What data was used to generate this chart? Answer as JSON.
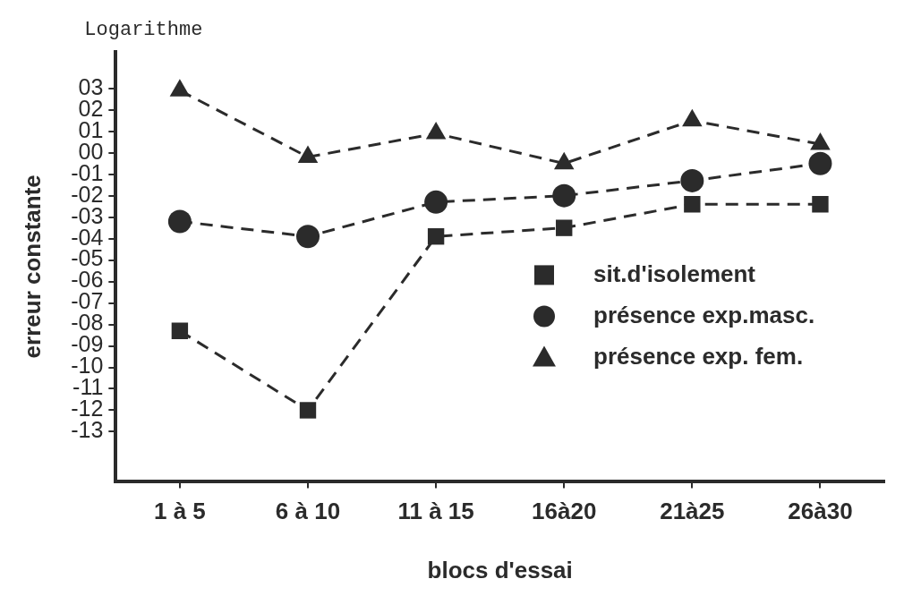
{
  "chart_data": {
    "type": "line",
    "xlabel": "blocs d'essai",
    "ylabel": "erreur constante",
    "annotations": [
      "Logarithme"
    ],
    "categories": [
      "1 à 5",
      "6 à 10",
      "11 à 15",
      "16à20",
      "21à25",
      "26à30"
    ],
    "series": [
      {
        "name": "sit.d'isolement",
        "color": "#2b2b2b",
        "marker": "square",
        "values": [
          -8.3,
          -12.0,
          -3.9,
          -3.5,
          -2.4,
          -2.4
        ]
      },
      {
        "name": "présence exp.masc.",
        "color": "#2b2b2b",
        "marker": "circle",
        "values": [
          -3.2,
          -3.9,
          -2.3,
          -2.0,
          -1.3,
          -0.5
        ]
      },
      {
        "name": "présence exp. fem.",
        "color": "#2b2b2b",
        "marker": "triangle",
        "values": [
          2.9,
          -0.2,
          0.9,
          -0.5,
          1.5,
          0.4
        ]
      }
    ],
    "ylim": [
      -15.3,
      4.7
    ],
    "yticks": [
      {
        "value": 3,
        "label": "03"
      },
      {
        "value": 2,
        "label": "02"
      },
      {
        "value": 1,
        "label": "01"
      },
      {
        "value": 0,
        "label": "00"
      },
      {
        "value": -1,
        "label": "-01"
      },
      {
        "value": -2,
        "label": "-02"
      },
      {
        "value": -3,
        "label": "-03"
      },
      {
        "value": -4,
        "label": "-04"
      },
      {
        "value": -5,
        "label": "-05"
      },
      {
        "value": -6,
        "label": "-06"
      },
      {
        "value": -7,
        "label": "-07"
      },
      {
        "value": -8,
        "label": "-08"
      },
      {
        "value": -9,
        "label": "-09"
      },
      {
        "value": -10,
        "label": "-10"
      },
      {
        "value": -11,
        "label": "-11"
      },
      {
        "value": -12,
        "label": "-12"
      },
      {
        "value": -13,
        "label": "-13"
      }
    ],
    "grid": false,
    "legend": "right",
    "line_style": "dashed"
  }
}
